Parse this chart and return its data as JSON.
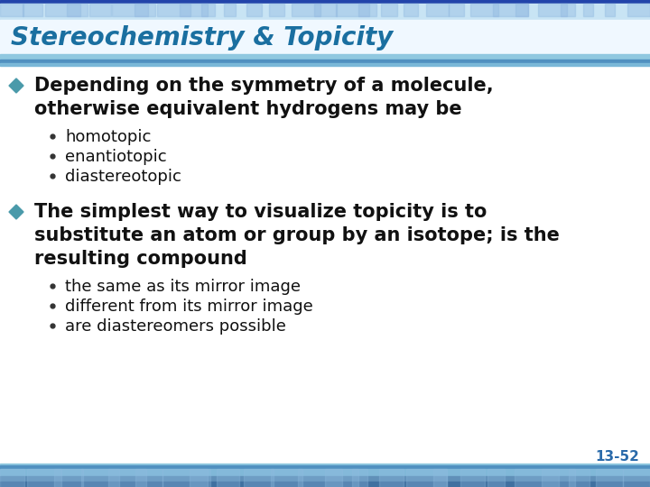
{
  "title": "Stereochemistry & Topicity",
  "title_color": "#1a6fa0",
  "title_fontsize": 20,
  "bullet1_text_line1": "Depending on the symmetry of a molecule,",
  "bullet1_text_line2": "otherwise equivalent hydrogens may be",
  "bullet1_subitems": [
    "homotopic",
    "enantiotopic",
    "diastereotopic"
  ],
  "bullet2_text_line1": "The simplest way to visualize topicity is to",
  "bullet2_text_line2": "substitute an atom or group by an isotope; is the",
  "bullet2_text_line3": "resulting compound",
  "bullet2_subitems": [
    "the same as its mirror image",
    "different from its mirror image",
    "are diastereomers possible"
  ],
  "bullet_color": "#4a9aaa",
  "bullet_fontsize": 15,
  "subitem_fontsize": 13,
  "body_text_color": "#111111",
  "page_number": "13-52",
  "page_num_color": "#2a6aaa",
  "background_color": "#ffffff"
}
